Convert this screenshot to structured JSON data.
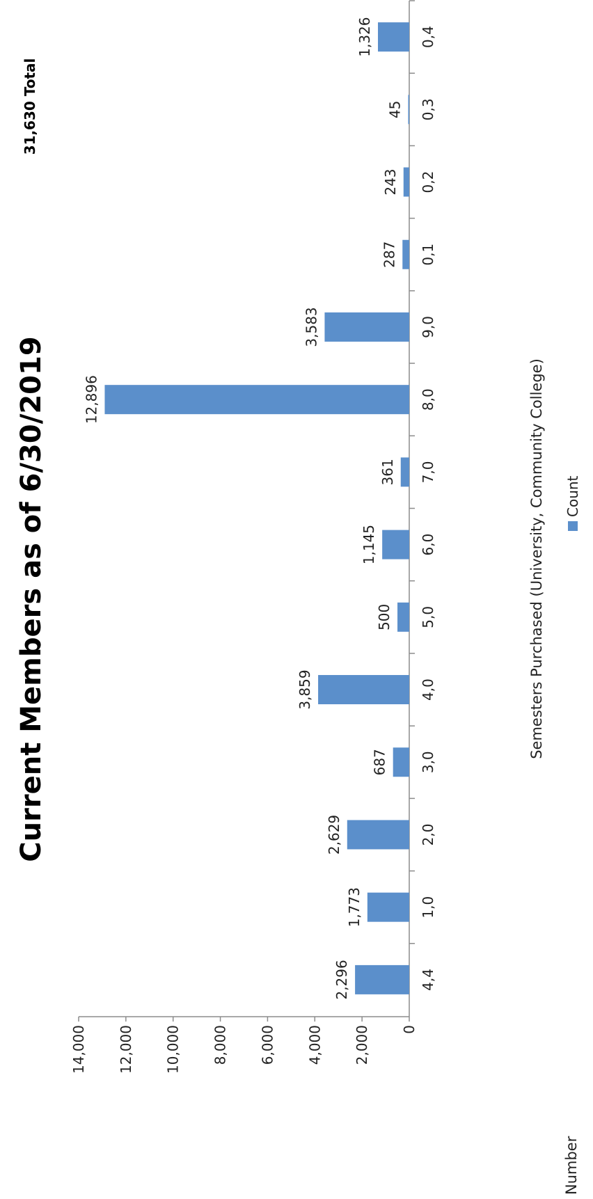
{
  "chart_data": {
    "type": "bar",
    "title_lines": [
      "Current Members as of 6/30/2019"
    ],
    "total_label": "31,630 Total",
    "xlabel": "Semesters Purchased (University, Community College)",
    "ylabel": "Number",
    "categories": [
      "4,4",
      "1,0",
      "2,0",
      "3,0",
      "4,0",
      "5,0",
      "6,0",
      "7,0",
      "8,0",
      "9,0",
      "0,1",
      "0,2",
      "0,3",
      "0,4"
    ],
    "value_labels": [
      "2,296",
      "1,773",
      "2,629",
      "687",
      "3,859",
      "500",
      "1,145",
      "361",
      "12,896",
      "3,583",
      "287",
      "243",
      "45",
      "1,326"
    ],
    "y_ticks": [
      "0",
      "2,000",
      "4,000",
      "6,000",
      "8,000",
      "10,000",
      "12,000",
      "14,000"
    ],
    "series": [
      {
        "name": "Count",
        "color": "#5b8fcb",
        "values": [
          2296,
          1773,
          2629,
          687,
          3859,
          500,
          1145,
          361,
          12896,
          3583,
          287,
          243,
          45,
          1326
        ]
      }
    ],
    "ylim": [
      0,
      14000
    ],
    "legend_position": "bottom",
    "grid": false
  }
}
